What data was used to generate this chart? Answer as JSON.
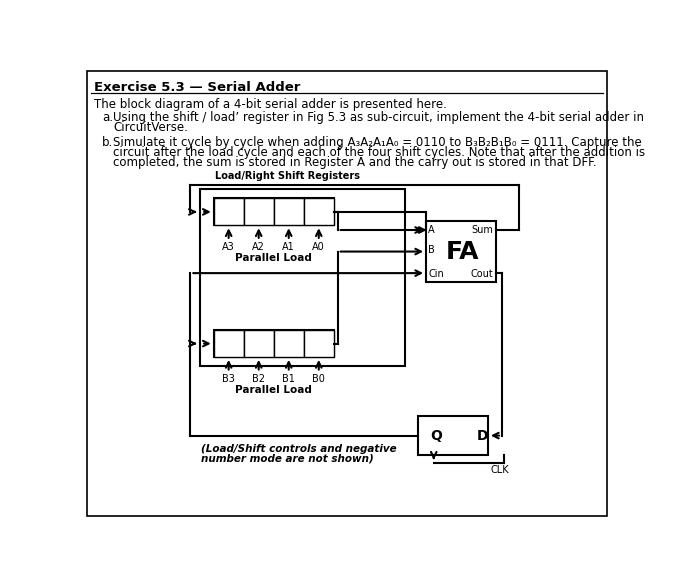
{
  "title": "Exercise 5.3 — Serial Adder",
  "bg_color": "#ffffff",
  "line1": "The block diagram of a 4-bit serial adder is presented here.",
  "item_a1": "Using the shift / load’ register in Fig 5.3 as sub-circuit, implement the 4-bit serial adder in",
  "item_a2": "CircuitVerse.",
  "item_b1": "Simulate it cycle by cycle when adding A₃A₂A₁A₀ = 0110 to B₃B₂B₁B₀ = 0111. Capture the",
  "item_b2": "circuit after the load cycle and each of the four shift cycles. Note that after the addition is",
  "item_b3": "completed, the sum is stored in Register A and the carry out is stored in that DFF.",
  "diagram_label": "Load/Right Shift Registers",
  "parallel_load": "Parallel Load",
  "note1": "(Load/Shift controls and negative",
  "note2": "number mode are not shown)",
  "a_labels": [
    "A3",
    "A2",
    "A1",
    "A0"
  ],
  "b_labels": [
    "B3",
    "B2",
    "B1",
    "B0"
  ],
  "fa_text": "FA",
  "a_in": "A",
  "b_in": "B",
  "sum_out": "Sum",
  "cin_in": "Cin",
  "cout_out": "Cout",
  "q_lbl": "Q",
  "d_lbl": "D",
  "clk_lbl": "CLK"
}
